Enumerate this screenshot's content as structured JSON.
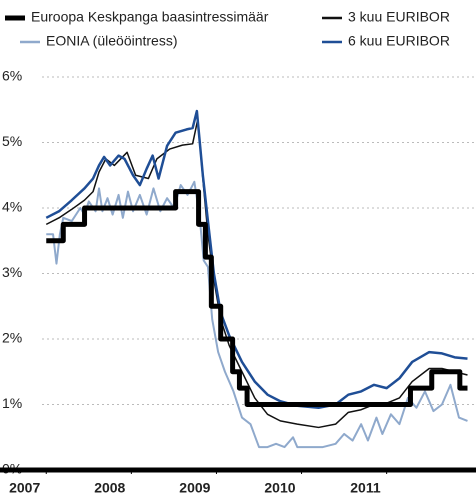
{
  "chart_data": {
    "type": "line",
    "xlim": [
      2006.95,
      2012.05
    ],
    "xticks": [
      2007,
      2008,
      2009,
      2010,
      2011
    ],
    "ylim": [
      0,
      6
    ],
    "yticks": [
      {
        "value": 0,
        "label": "0%"
      },
      {
        "value": 1,
        "label": "1%"
      },
      {
        "value": 2,
        "label": "2%"
      },
      {
        "value": 3,
        "label": "3%"
      },
      {
        "value": 4,
        "label": "4%"
      },
      {
        "value": 5,
        "label": "5%"
      },
      {
        "value": 6,
        "label": "6%"
      }
    ],
    "grid": true,
    "series": [
      {
        "name": "Euroopa Keskpanga baasintressimäär",
        "color": "#000000",
        "x": [
          2007.0,
          2007.2,
          2007.2,
          2007.45,
          2007.45,
          2008.52,
          2008.52,
          2008.79,
          2008.79,
          2008.87,
          2008.87,
          2008.94,
          2008.94,
          2009.05,
          2009.05,
          2009.19,
          2009.19,
          2009.27,
          2009.27,
          2009.36,
          2009.36,
          2011.28,
          2011.28,
          2011.53,
          2011.53,
          2011.86,
          2011.86,
          2011.95
        ],
        "values": [
          3.5,
          3.5,
          3.75,
          3.75,
          4.0,
          4.0,
          4.25,
          4.25,
          3.75,
          3.75,
          3.25,
          3.25,
          2.5,
          2.5,
          2.0,
          2.0,
          1.5,
          1.5,
          1.25,
          1.25,
          1.0,
          1.0,
          1.25,
          1.25,
          1.5,
          1.5,
          1.25,
          1.25
        ]
      },
      {
        "name": "EONIA (üleööintress)",
        "color": "#8fa9cc",
        "x": [
          2007.0,
          2007.08,
          2007.12,
          2007.16,
          2007.2,
          2007.3,
          2007.4,
          2007.45,
          2007.5,
          2007.58,
          2007.62,
          2007.66,
          2007.72,
          2007.78,
          2007.85,
          2007.9,
          2007.96,
          2008.02,
          2008.1,
          2008.18,
          2008.26,
          2008.34,
          2008.42,
          2008.5,
          2008.58,
          2008.66,
          2008.74,
          2008.8,
          2008.85,
          2008.9,
          2008.95,
          2009.02,
          2009.1,
          2009.2,
          2009.3,
          2009.4,
          2009.5,
          2009.6,
          2009.7,
          2009.8,
          2009.9,
          2009.95,
          2010.1,
          2010.25,
          2010.4,
          2010.5,
          2010.6,
          2010.7,
          2010.78,
          2010.88,
          2010.95,
          2011.05,
          2011.15,
          2011.25,
          2011.35,
          2011.45,
          2011.55,
          2011.65,
          2011.75,
          2011.85,
          2011.95
        ],
        "values": [
          3.6,
          3.6,
          3.15,
          3.6,
          3.85,
          3.8,
          4.0,
          3.9,
          4.1,
          3.95,
          4.3,
          3.95,
          4.15,
          3.9,
          4.2,
          3.85,
          4.25,
          3.95,
          4.2,
          3.9,
          4.3,
          3.95,
          4.15,
          4.0,
          4.35,
          4.2,
          4.4,
          3.9,
          3.2,
          3.1,
          2.3,
          1.8,
          1.5,
          1.2,
          0.8,
          0.7,
          0.35,
          0.35,
          0.4,
          0.35,
          0.5,
          0.35,
          0.35,
          0.35,
          0.4,
          0.55,
          0.45,
          0.7,
          0.45,
          0.8,
          0.55,
          0.85,
          0.7,
          1.1,
          0.95,
          1.2,
          0.9,
          1.0,
          1.3,
          0.8,
          0.75
        ]
      },
      {
        "name": "3 kuu EURIBOR",
        "color": "#111111",
        "x": [
          2007.0,
          2007.15,
          2007.3,
          2007.45,
          2007.55,
          2007.62,
          2007.7,
          2007.8,
          2007.95,
          2008.05,
          2008.2,
          2008.3,
          2008.45,
          2008.6,
          2008.72,
          2008.78,
          2008.85,
          2008.9,
          2008.97,
          2009.05,
          2009.15,
          2009.3,
          2009.45,
          2009.6,
          2009.75,
          2009.95,
          2010.2,
          2010.4,
          2010.55,
          2010.7,
          2010.85,
          2011.0,
          2011.15,
          2011.3,
          2011.5,
          2011.65,
          2011.8,
          2011.95
        ],
        "values": [
          3.75,
          3.85,
          3.98,
          4.12,
          4.25,
          4.55,
          4.75,
          4.65,
          4.85,
          4.5,
          4.45,
          4.75,
          4.9,
          4.96,
          4.98,
          5.35,
          4.3,
          3.6,
          2.9,
          2.3,
          1.9,
          1.5,
          1.1,
          0.85,
          0.75,
          0.7,
          0.65,
          0.7,
          0.88,
          0.92,
          1.0,
          1.02,
          1.1,
          1.35,
          1.55,
          1.55,
          1.5,
          1.45
        ]
      },
      {
        "name": "6 kuu EURIBOR",
        "color": "#1f4e96",
        "x": [
          2007.0,
          2007.15,
          2007.3,
          2007.45,
          2007.55,
          2007.62,
          2007.68,
          2007.75,
          2007.85,
          2007.92,
          2008.02,
          2008.1,
          2008.18,
          2008.25,
          2008.32,
          2008.42,
          2008.52,
          2008.65,
          2008.72,
          2008.77,
          2008.84,
          2008.9,
          2008.97,
          2009.05,
          2009.15,
          2009.3,
          2009.45,
          2009.6,
          2009.75,
          2009.95,
          2010.2,
          2010.4,
          2010.55,
          2010.7,
          2010.85,
          2011.0,
          2011.15,
          2011.3,
          2011.5,
          2011.65,
          2011.8,
          2011.95
        ],
        "values": [
          3.85,
          3.95,
          4.12,
          4.3,
          4.45,
          4.65,
          4.78,
          4.65,
          4.8,
          4.75,
          4.5,
          4.35,
          4.6,
          4.8,
          4.45,
          4.95,
          5.15,
          5.2,
          5.22,
          5.48,
          4.5,
          3.8,
          3.0,
          2.4,
          2.05,
          1.65,
          1.35,
          1.15,
          1.05,
          0.98,
          0.95,
          1.0,
          1.15,
          1.2,
          1.3,
          1.25,
          1.4,
          1.65,
          1.8,
          1.78,
          1.72,
          1.7
        ]
      }
    ]
  }
}
